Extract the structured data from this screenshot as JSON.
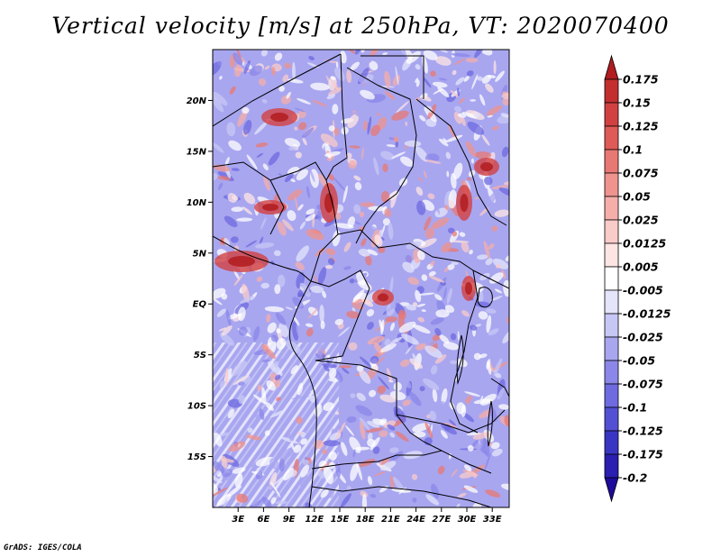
{
  "title": "Vertical velocity [m/s] at 250hPa, VT: 2020070400",
  "credit": "GrADS: IGES/COLA",
  "map": {
    "lon_range": [
      0,
      35
    ],
    "lat_range": [
      -20,
      25
    ],
    "lat_ticks": [
      "20N",
      "15N",
      "10N",
      "5N",
      "EQ",
      "5S",
      "10S",
      "15S"
    ],
    "lon_ticks": [
      "3E",
      "6E",
      "9E",
      "12E",
      "15E",
      "18E",
      "21E",
      "24E",
      "27E",
      "30E",
      "33E"
    ],
    "field": "vertical velocity (colour-shaded)",
    "background_color": "#a9a6f0"
  },
  "colorbar": {
    "labels": [
      "0.175",
      "0.15",
      "0.125",
      "0.1",
      "0.075",
      "0.05",
      "0.025",
      "0.0125",
      "0.005",
      "-0.005",
      "-0.0125",
      "-0.025",
      "-0.05",
      "-0.075",
      "-0.1",
      "-0.125",
      "-0.175",
      "-0.2"
    ],
    "colors": [
      "#b01c1f",
      "#c32f2f",
      "#d24141",
      "#df5b57",
      "#e87873",
      "#ef938e",
      "#f5aeaa",
      "#f9cbc9",
      "#fde5e4",
      "#ffffff",
      "#e4e4fb",
      "#c7c7f6",
      "#a9a6f0",
      "#8b87e9",
      "#6e6ae0",
      "#5450d4",
      "#3a36c4",
      "#2a1fb0",
      "#1d0b9a"
    ]
  }
}
